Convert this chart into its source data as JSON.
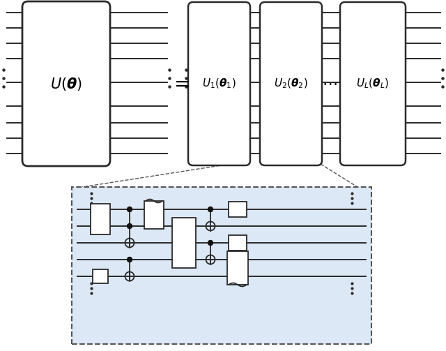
{
  "bg_color": "#ffffff",
  "wire_color": "#2a2a2a",
  "box_color": "#ffffff",
  "box_edge": "#2a2a2a",
  "circuit_bg": "#dce8f5",
  "dashed_color": "#555555",
  "dot_color": "#111111"
}
